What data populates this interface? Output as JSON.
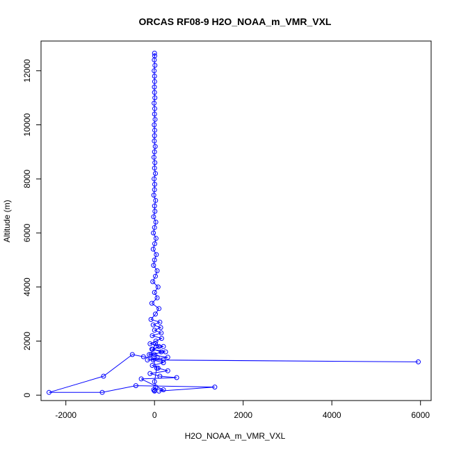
{
  "chart_data": {
    "type": "line",
    "title": "ORCAS RF08-9 H2O_NOAA_m_VMR_VXL",
    "xlabel": "H2O_NOAA_m_VMR_VXL",
    "ylabel": "Altitude (m)",
    "xlim": [
      -2560,
      6240
    ],
    "ylim": [
      -200,
      13100
    ],
    "xticks": [
      -2000,
      0,
      2000,
      4000,
      6000
    ],
    "yticks": [
      0,
      2000,
      4000,
      6000,
      8000,
      10000,
      12000
    ],
    "xtick_labels": [
      "-2000",
      "0",
      "2000",
      "4000",
      "6000"
    ],
    "ytick_labels": [
      "0",
      "2000",
      "4000",
      "6000",
      "8000",
      "10000",
      "12000"
    ],
    "grid": false,
    "legend": "none",
    "series_color": "#0000ff",
    "series": [
      {
        "x": [
          0,
          5,
          -5,
          10,
          -8,
          0,
          3,
          -3,
          0,
          8,
          -10,
          5,
          0,
          12,
          -6,
          4,
          0,
          -4,
          15,
          0,
          -12,
          8,
          0,
          20,
          -10,
          5,
          0,
          -15,
          25,
          0,
          10,
          -20,
          30,
          0,
          -25,
          35,
          5,
          -30,
          40,
          0,
          -20,
          60,
          20,
          -40,
          80,
          0,
          60,
          -60,
          100,
          20,
          -80,
          120,
          -30,
          140,
          0,
          150,
          -50,
          160,
          30,
          -100,
          200,
          -60,
          250,
          -120,
          300,
          -160,
          5950,
          200,
          -250,
          -500,
          -1150,
          -2380,
          -1180,
          -420,
          1360,
          100,
          200,
          -300,
          500,
          120,
          -100,
          300,
          80,
          -50,
          200,
          -30,
          60,
          0,
          150,
          -40,
          100,
          20,
          -80,
          50,
          0,
          30,
          -20,
          10,
          0
        ],
        "y": [
          12650,
          12550,
          12400,
          12200,
          12000,
          11800,
          11600,
          11400,
          11200,
          11000,
          10800,
          10600,
          10400,
          10200,
          10000,
          9800,
          9600,
          9400,
          9200,
          9000,
          8800,
          8600,
          8400,
          8200,
          8000,
          7800,
          7600,
          7400,
          7200,
          7000,
          6800,
          6600,
          6400,
          6200,
          6000,
          5800,
          5600,
          5400,
          5200,
          5000,
          4800,
          4600,
          4400,
          4200,
          4000,
          3800,
          3600,
          3400,
          3200,
          3000,
          2800,
          2700,
          2600,
          2500,
          2400,
          2300,
          2200,
          2100,
          2000,
          1900,
          1800,
          1700,
          1600,
          1500,
          1400,
          1300,
          1230,
          1300,
          1420,
          1500,
          700,
          100,
          100,
          350,
          300,
          150,
          200,
          600,
          650,
          700,
          800,
          900,
          1000,
          1100,
          1200,
          1300,
          1400,
          1500,
          1600,
          1700,
          1800,
          1900,
          1500,
          1000,
          500,
          300,
          200,
          180,
          150
        ]
      }
    ]
  }
}
